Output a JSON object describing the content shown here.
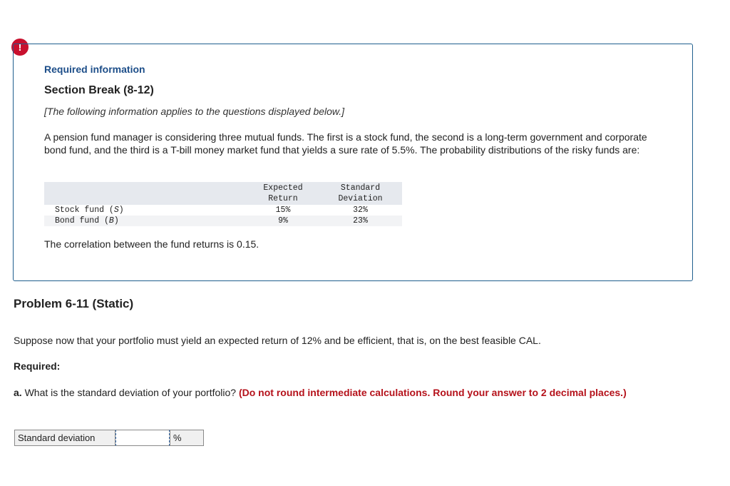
{
  "alert": {
    "symbol": "!"
  },
  "info": {
    "title": "Required information",
    "section_break": "Section Break (8-12)",
    "applies": "[The following information applies to the questions displayed below.]",
    "scenario": "A pension fund manager is considering three mutual funds. The first is a stock fund, the second is a long-term government and corporate bond fund, and the third is a T-bill money market fund that yields a sure rate of 5.5%. The probability distributions of the risky funds are:",
    "table": {
      "headers": {
        "expected_line1": "Expected",
        "expected_line2": "Return",
        "sd_line1": "Standard",
        "sd_line2": "Deviation"
      },
      "rows": [
        {
          "name_prefix": "Stock fund (",
          "name_var": "S",
          "name_suffix": ")",
          "expected": "15%",
          "sd": "32%"
        },
        {
          "name_prefix": "Bond fund (",
          "name_var": "B",
          "name_suffix": ")",
          "expected": "9%",
          "sd": "23%"
        }
      ]
    },
    "correlation": "The correlation between the fund returns is 0.15."
  },
  "problem": {
    "title": "Problem 6-11 (Static)",
    "suppose": "Suppose now that your portfolio must yield an expected return of 12% and be efficient, that is, on the best feasible CAL.",
    "required": "Required:",
    "question_label": "a.",
    "question_text": " What is the standard deviation of your portfolio? ",
    "instruction": "(Do not round intermediate calculations. Round your answer to 2 decimal places.)",
    "answer": {
      "label": "Standard deviation",
      "value": "",
      "unit": "%"
    }
  },
  "colors": {
    "accent_blue": "#1d4e89",
    "alert_red": "#c8102e",
    "instruction_red": "#b5121b"
  }
}
